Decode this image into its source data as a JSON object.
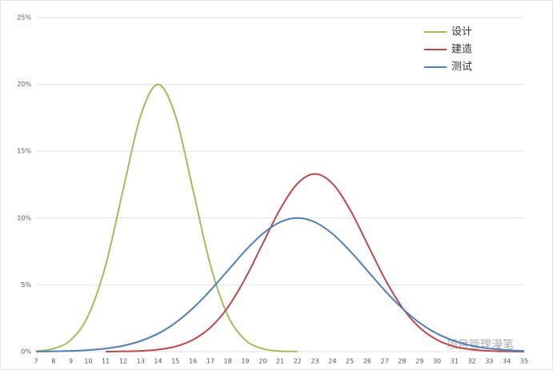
{
  "chart_data": {
    "type": "line",
    "x": [
      7,
      8,
      9,
      10,
      11,
      12,
      13,
      14,
      15,
      16,
      17,
      18,
      19,
      20,
      21,
      22,
      23,
      24,
      25,
      26,
      27,
      28,
      29,
      30,
      31,
      32,
      33,
      34,
      35
    ],
    "xlim": [
      7,
      35
    ],
    "xticks": [
      7,
      8,
      9,
      10,
      11,
      12,
      13,
      14,
      15,
      16,
      17,
      18,
      19,
      20,
      21,
      22,
      23,
      24,
      25,
      26,
      27,
      28,
      29,
      30,
      31,
      32,
      33,
      34,
      35
    ],
    "ylim": [
      0,
      25
    ],
    "yticks": [
      {
        "value": 0,
        "label": "0%"
      },
      {
        "value": 5,
        "label": "5%"
      },
      {
        "value": 10,
        "label": "10%"
      },
      {
        "value": 15,
        "label": "15%"
      },
      {
        "value": 20,
        "label": "20%"
      },
      {
        "value": 25,
        "label": "25%"
      }
    ],
    "grid": true,
    "legend": "top-right",
    "series": [
      {
        "name": "设计",
        "color": "#a4bc5c",
        "values": [
          0.04,
          0.22,
          0.88,
          2.71,
          6.49,
          12.13,
          17.65,
          20,
          17.65,
          12.13,
          6.49,
          2.71,
          0.88,
          0.22,
          0.04,
          0.01,
          null,
          null,
          null,
          null,
          null,
          null,
          null,
          null,
          null,
          null,
          null,
          null,
          null
        ]
      },
      {
        "name": "建造",
        "color": "#b9494c",
        "values": [
          null,
          null,
          null,
          null,
          0,
          0.02,
          0.05,
          0.15,
          0.38,
          0.88,
          1.8,
          3.31,
          5.47,
          8.07,
          10.65,
          12.58,
          13.3,
          12.58,
          10.65,
          8.07,
          5.47,
          3.31,
          1.8,
          0.88,
          0.38,
          0.15,
          0.05,
          0.02,
          0
        ]
      },
      {
        "name": "测试",
        "color": "#4f7fb5",
        "values": [
          0.01,
          0.02,
          0.05,
          0.11,
          0.23,
          0.44,
          0.8,
          1.35,
          2.16,
          3.25,
          4.58,
          6.07,
          7.55,
          8.82,
          9.69,
          10,
          9.69,
          8.82,
          7.55,
          6.07,
          4.58,
          3.25,
          2.16,
          1.35,
          0.8,
          0.44,
          0.23,
          0.11,
          0.05
        ]
      }
    ],
    "watermark": "项目管理漫笔"
  }
}
